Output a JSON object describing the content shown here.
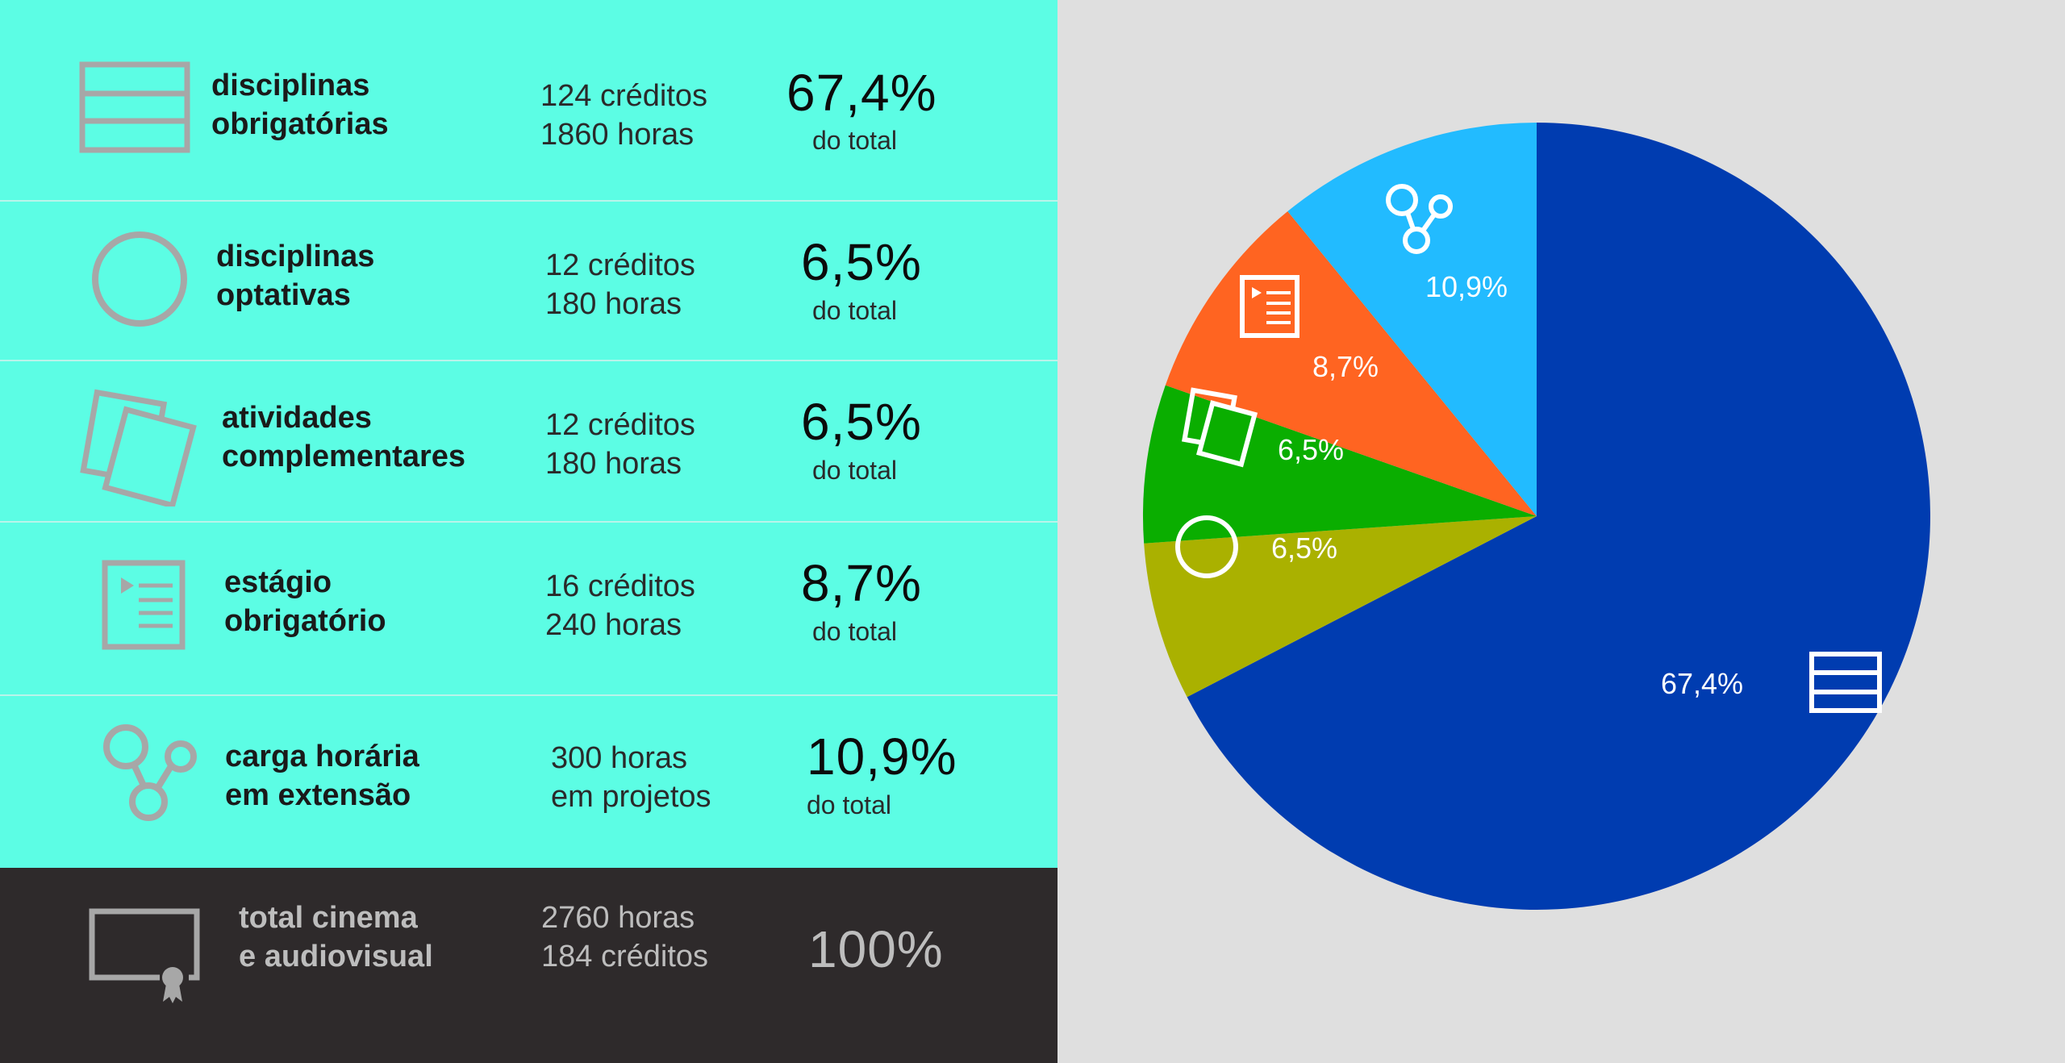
{
  "rows": [
    {
      "label_l1": "disciplinas",
      "label_l2": "obrigatórias",
      "stat_l1": "124 créditos",
      "stat_l2": "1860 horas",
      "pct": "67,4%",
      "of": "do total",
      "icon": "grid-list-icon"
    },
    {
      "label_l1": "disciplinas",
      "label_l2": "optativas",
      "stat_l1": "12 créditos",
      "stat_l2": "180 horas",
      "pct": "6,5%",
      "of": "do total",
      "icon": "circle-icon"
    },
    {
      "label_l1": "atividades",
      "label_l2": "complementares",
      "stat_l1": "12 créditos",
      "stat_l2": "180 horas",
      "pct": "6,5%",
      "of": "do total",
      "icon": "documents-icon"
    },
    {
      "label_l1": "estágio",
      "label_l2": "obrigatório",
      "stat_l1": "16 créditos",
      "stat_l2": "240 horas",
      "pct": "8,7%",
      "of": "do total",
      "icon": "document-list-icon"
    },
    {
      "label_l1": "carga horária",
      "label_l2": "em extensão",
      "stat_l1": "300 horas",
      "stat_l2": "em projetos",
      "pct": "10,9%",
      "of": "do total",
      "icon": "network-nodes-icon"
    }
  ],
  "total": {
    "label_l1": "total cinema",
    "label_l2": "e audiovisual",
    "stat_l1": "2760 horas",
    "stat_l2": "184 créditos",
    "pct": "100%",
    "icon": "certificate-icon"
  },
  "colors": {
    "panel_bg": "#5cfde4",
    "total_bg": "#2e2a2b",
    "chart_bg": "#dfdfdf",
    "icon_gray": "#a7a7a7"
  },
  "chart_data": {
    "type": "pie",
    "slices": [
      {
        "value": 67.4,
        "label": "67,4%",
        "color": "#003cb0",
        "icon": "grid-list-icon"
      },
      {
        "value": 6.5,
        "label": "6,5%",
        "color": "#aab100",
        "icon": "circle-icon"
      },
      {
        "value": 6.5,
        "label": "6,5%",
        "color": "#0aae00",
        "icon": "documents-icon"
      },
      {
        "value": 8.7,
        "label": "8,7%",
        "color": "#ff6421",
        "icon": "document-list-icon"
      },
      {
        "value": 10.9,
        "label": "10,9%",
        "color": "#22bbff",
        "icon": "network-nodes-icon"
      }
    ],
    "start": "12 o'clock",
    "direction": "clockwise"
  }
}
